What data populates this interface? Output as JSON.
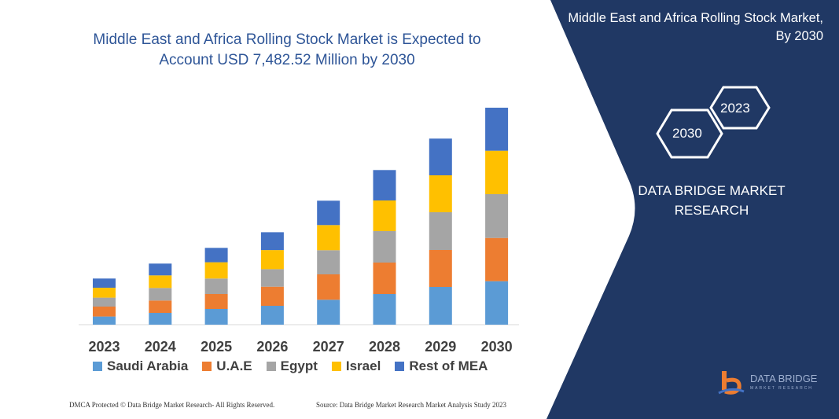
{
  "title": "Middle East and Africa Rolling Stock Market is Expected to Account USD 7,482.52 Million by 2030",
  "side_panel": {
    "title": "Middle East and Africa Rolling Stock Market, By 2030",
    "hex_years": [
      "2030",
      "2023"
    ],
    "brand": "DATA BRIDGE MARKET RESEARCH",
    "logo_text": "DATA BRIDGE",
    "logo_subtext": "MARKET RESEARCH",
    "color": "#203864"
  },
  "footer": {
    "left": "DMCA Protected © Data Bridge Market Research- All Rights Reserved.",
    "right": "Source: Data Bridge Market Research Market Analysis Study 2023"
  },
  "chart_data": {
    "type": "bar",
    "stacked": true,
    "categories": [
      "2023",
      "2024",
      "2025",
      "2026",
      "2027",
      "2028",
      "2029",
      "2030"
    ],
    "series": [
      {
        "name": "Saudi Arabia",
        "color": "#5b9bd5",
        "values": [
          10.4,
          15,
          20,
          24,
          31.7,
          39,
          48,
          55.3
        ]
      },
      {
        "name": "U.A.E",
        "color": "#ed7d31",
        "values": [
          12.6,
          15.7,
          19,
          24.3,
          32.3,
          40,
          47,
          55
        ]
      },
      {
        "name": "Egypt",
        "color": "#a5a5a5",
        "values": [
          11.4,
          16,
          19.7,
          22.3,
          30.7,
          40,
          48,
          55.7
        ]
      },
      {
        "name": "Israel",
        "color": "#ffc000",
        "values": [
          12.6,
          16,
          20.7,
          24.3,
          32,
          39,
          47,
          55.3
        ]
      },
      {
        "name": "Rest of MEA",
        "color": "#4472c4",
        "values": [
          11.7,
          15,
          18.3,
          22.7,
          31,
          38.7,
          46.7,
          54.7
        ]
      }
    ],
    "title": "",
    "xlabel": "",
    "ylabel": "",
    "grid": false,
    "y_axis_shown": false,
    "legend_position": "bottom"
  }
}
